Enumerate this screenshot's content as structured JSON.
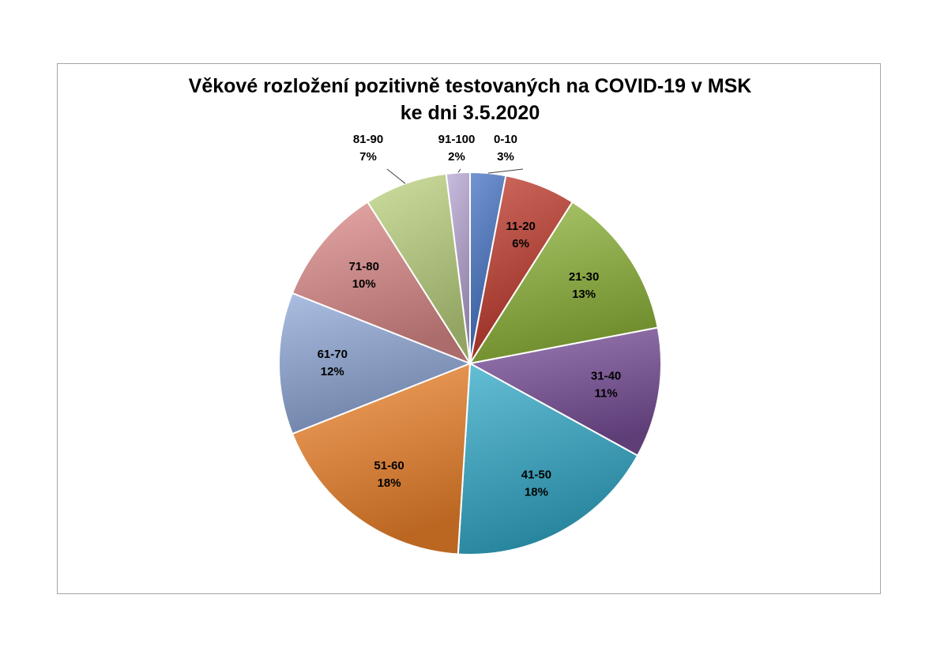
{
  "chart_data": {
    "type": "pie",
    "title": "Věkové rozložení pozitivně testovaných na COVID-19 v MSK",
    "subtitle": "ke dni 3.5.2020",
    "categories": [
      "0-10",
      "11-20",
      "21-30",
      "31-40",
      "41-50",
      "51-60",
      "61-70",
      "71-80",
      "81-90",
      "91-100"
    ],
    "values": [
      3,
      6,
      13,
      11,
      18,
      18,
      12,
      10,
      7,
      2
    ],
    "value_labels": [
      "3%",
      "6%",
      "13%",
      "11%",
      "18%",
      "18%",
      "12%",
      "10%",
      "7%",
      "2%"
    ],
    "colors": [
      "#4472c4",
      "#c0392b",
      "#8fb53a",
      "#7a4f9a",
      "#31a9c8",
      "#f0842c",
      "#8fa8d8",
      "#dc8b89",
      "#bcd37f",
      "#b7a5d3"
    ],
    "legend": "none",
    "data_labels": "category and percentage"
  }
}
